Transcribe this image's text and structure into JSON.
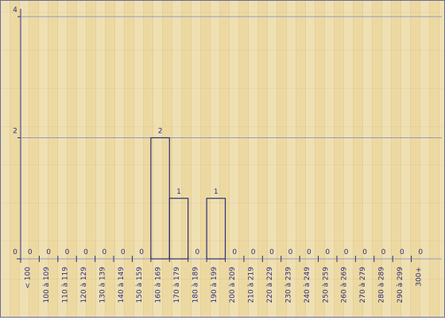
{
  "chart_data": {
    "type": "bar",
    "categories": [
      "< 100",
      "100 à 109",
      "110 à 119",
      "120 à 129",
      "130 à 139",
      "140 à 149",
      "150 à 159",
      "160 à 169",
      "170 à 179",
      "180 à 189",
      "190 à 199",
      "200 à 209",
      "210 à 219",
      "220 à 229",
      "230 à 239",
      "240 à 249",
      "250 à 259",
      "260 à 269",
      "270 à 279",
      "280 à 289",
      "290 à 299",
      "300+"
    ],
    "values": [
      0,
      0,
      0,
      0,
      0,
      0,
      0,
      2,
      1,
      0,
      1,
      0,
      0,
      0,
      0,
      0,
      0,
      0,
      0,
      0,
      0,
      0
    ],
    "color": "#2e2e7a",
    "ylim": [
      0,
      4
    ],
    "yticks": [
      0,
      2,
      4
    ],
    "grid": true
  }
}
